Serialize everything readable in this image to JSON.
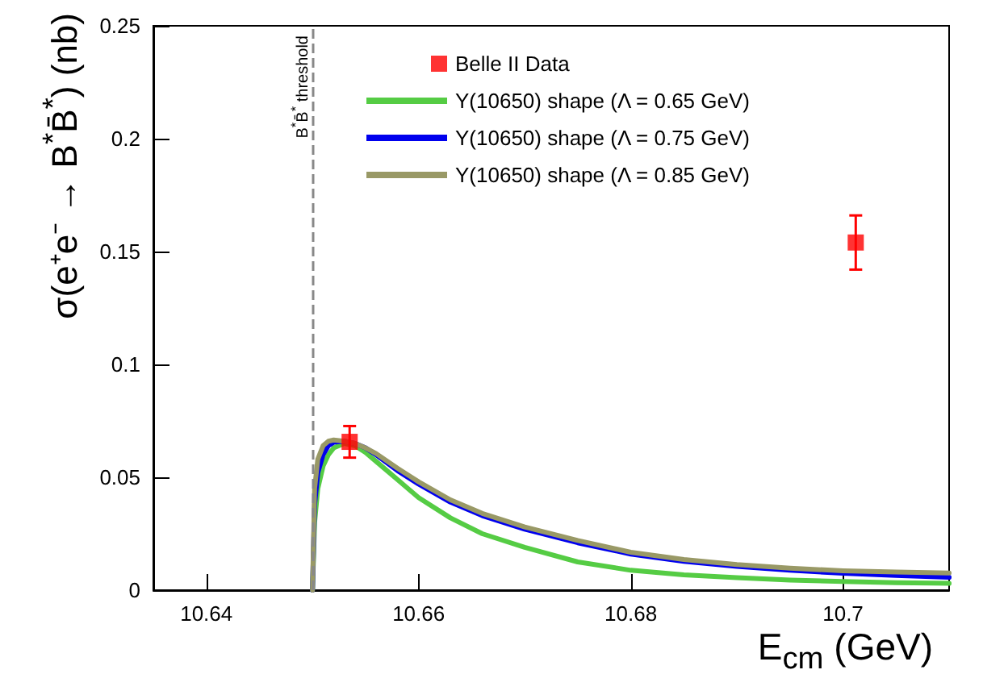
{
  "chart_data": {
    "type": "line",
    "xlabel": "E$_{cm}$ (GeV)",
    "ylabel": "σ(e⁺e⁻ → B$^{*}$B̄$^{*}$) (nb)",
    "xlim": [
      10.635,
      10.71
    ],
    "xticks": [
      10.64,
      10.66,
      10.68,
      10.7
    ],
    "ylim": [
      0,
      0.25
    ],
    "yticks": [
      0,
      0.05,
      0.1,
      0.15,
      0.2,
      0.25
    ],
    "grid": false,
    "legend": "top",
    "line_style": "solid",
    "ref_lines": [
      {
        "axis": "x",
        "value": 10.65,
        "label": "B$^{*}$B̄$^{*}$ threshold",
        "color": "#888888",
        "line_style": "dashed"
      }
    ],
    "series": [
      {
        "type": "scatter",
        "name": "Belle II Data",
        "color": "#ff0000",
        "marker": "square",
        "x": [
          10.6535,
          10.7012
        ],
        "values": [
          0.0657,
          0.154
        ],
        "errors": [
          0.007,
          0.012
        ]
      },
      {
        "name": "Y(10650) shape (Λ = 0.65 GeV)",
        "color": "#55cc44",
        "x": [
          10.65,
          10.6502,
          10.6505,
          10.651,
          10.6515,
          10.652,
          10.653,
          10.654,
          10.655,
          10.656,
          10.658,
          10.66,
          10.663,
          10.666,
          10.67,
          10.675,
          10.68,
          10.685,
          10.69,
          10.695,
          10.7,
          10.705,
          10.71
        ],
        "values": [
          0,
          0.03,
          0.045,
          0.055,
          0.06,
          0.063,
          0.065,
          0.064,
          0.061,
          0.057,
          0.049,
          0.041,
          0.032,
          0.025,
          0.019,
          0.0125,
          0.0088,
          0.0068,
          0.0055,
          0.0045,
          0.0038,
          0.0033,
          0.003
        ]
      },
      {
        "name": "Y(10650) shape (Λ = 0.75 GeV)",
        "color": "#0000ee",
        "x": [
          10.65,
          10.6502,
          10.6505,
          10.651,
          10.6515,
          10.652,
          10.653,
          10.654,
          10.655,
          10.656,
          10.658,
          10.66,
          10.663,
          10.666,
          10.67,
          10.675,
          10.68,
          10.685,
          10.69,
          10.695,
          10.7,
          10.705,
          10.71
        ],
        "values": [
          0,
          0.038,
          0.052,
          0.06,
          0.064,
          0.0655,
          0.066,
          0.065,
          0.063,
          0.06,
          0.053,
          0.047,
          0.039,
          0.033,
          0.027,
          0.021,
          0.016,
          0.0128,
          0.0105,
          0.0088,
          0.0075,
          0.0065,
          0.0057
        ]
      },
      {
        "name": "Y(10650) shape (Λ = 0.85 GeV)",
        "color": "#999966",
        "x": [
          10.65,
          10.6502,
          10.6505,
          10.651,
          10.6515,
          10.652,
          10.653,
          10.654,
          10.655,
          10.656,
          10.658,
          10.66,
          10.663,
          10.666,
          10.67,
          10.675,
          10.68,
          10.685,
          10.69,
          10.695,
          10.7,
          10.705,
          10.71
        ],
        "values": [
          0,
          0.045,
          0.058,
          0.064,
          0.066,
          0.0665,
          0.066,
          0.065,
          0.063,
          0.0605,
          0.054,
          0.048,
          0.04,
          0.034,
          0.028,
          0.022,
          0.0168,
          0.0136,
          0.0113,
          0.0097,
          0.0086,
          0.008,
          0.0076
        ]
      }
    ]
  }
}
